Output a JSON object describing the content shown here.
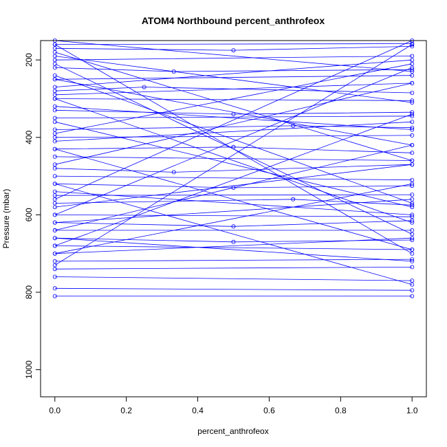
{
  "chart_data": {
    "type": "line",
    "title": "ATOM4 Northbound percent_anthrofeox",
    "xlabel": "percent_anthrofeox",
    "ylabel": "Pressure (mbar)",
    "xlim": [
      -0.04,
      1.04
    ],
    "ylim": [
      1070,
      150
    ],
    "y_reversed": true,
    "x_ticks": [
      {
        "value": 0.0,
        "label": "0.0"
      },
      {
        "value": 0.2,
        "label": "0.2"
      },
      {
        "value": 0.4,
        "label": "0.4"
      },
      {
        "value": 0.6,
        "label": "0.6"
      },
      {
        "value": 0.8,
        "label": "0.8"
      },
      {
        "value": 1.0,
        "label": "1.0"
      }
    ],
    "y_ticks": [
      {
        "value": 200,
        "label": "200"
      },
      {
        "value": 400,
        "label": "400"
      },
      {
        "value": 600,
        "label": "600"
      },
      {
        "value": 800,
        "label": "800"
      },
      {
        "value": 1000,
        "label": "1000"
      }
    ],
    "grid": false,
    "legend": "none",
    "series_color": "#0000ff",
    "marker": "open-circle",
    "series": [
      {
        "x": [
          0.0,
          1.0
        ],
        "y": [
          160,
          158
        ]
      },
      {
        "x": [
          0.0,
          1.0
        ],
        "y": [
          200,
          190
        ]
      },
      {
        "x": [
          0.0,
          1.0
        ],
        "y": [
          250,
          240
        ]
      },
      {
        "x": [
          0.0,
          1.0
        ],
        "y": [
          300,
          305
        ]
      },
      {
        "x": [
          0.0,
          1.0
        ],
        "y": [
          350,
          345
        ]
      },
      {
        "x": [
          0.0,
          1.0
        ],
        "y": [
          400,
          395
        ]
      },
      {
        "x": [
          0.0,
          1.0
        ],
        "y": [
          450,
          460
        ]
      },
      {
        "x": [
          0.0,
          1.0
        ],
        "y": [
          500,
          510
        ]
      },
      {
        "x": [
          0.0,
          1.0
        ],
        "y": [
          550,
          548
        ]
      },
      {
        "x": [
          0.0,
          1.0
        ],
        "y": [
          600,
          605
        ]
      },
      {
        "x": [
          0.0,
          1.0
        ],
        "y": [
          640,
          640
        ]
      },
      {
        "x": [
          0.0,
          1.0
        ],
        "y": [
          680,
          690
        ]
      },
      {
        "x": [
          0.0,
          1.0
        ],
        "y": [
          720,
          715
        ]
      },
      {
        "x": [
          0.0,
          1.0
        ],
        "y": [
          760,
          770
        ]
      },
      {
        "x": [
          0.0,
          1.0
        ],
        "y": [
          790,
          795
        ]
      },
      {
        "x": [
          0.0,
          1.0
        ],
        "y": [
          810,
          810
        ]
      },
      {
        "x": [
          0.0,
          0.5,
          1.0
        ],
        "y": [
          170,
          175,
          165
        ]
      },
      {
        "x": [
          0.0,
          0.333,
          1.0
        ],
        "y": [
          220,
          230,
          225
        ]
      },
      {
        "x": [
          0.0,
          0.25,
          1.0
        ],
        "y": [
          280,
          270,
          285
        ]
      },
      {
        "x": [
          0.0,
          0.5,
          1.0
        ],
        "y": [
          330,
          340,
          335
        ]
      },
      {
        "x": [
          0.0,
          0.667,
          1.0
        ],
        "y": [
          380,
          370,
          375
        ]
      },
      {
        "x": [
          0.0,
          0.5,
          1.0
        ],
        "y": [
          430,
          425,
          440
        ]
      },
      {
        "x": [
          0.0,
          0.333,
          1.0
        ],
        "y": [
          480,
          490,
          470
        ]
      },
      {
        "x": [
          0.0,
          0.5,
          1.0
        ],
        "y": [
          520,
          530,
          525
        ]
      },
      {
        "x": [
          0.0,
          0.667,
          1.0
        ],
        "y": [
          570,
          560,
          575
        ]
      },
      {
        "x": [
          0.0,
          0.5,
          1.0
        ],
        "y": [
          620,
          630,
          615
        ]
      },
      {
        "x": [
          0.0,
          0.5,
          1.0
        ],
        "y": [
          660,
          670,
          665
        ]
      },
      {
        "x": [
          0.0,
          1.0
        ],
        "y": [
          740,
          735
        ]
      },
      {
        "x": [
          0.0,
          1.0
        ],
        "y": [
          210,
          650
        ]
      },
      {
        "x": [
          0.0,
          1.0
        ],
        "y": [
          160,
          700
        ]
      },
      {
        "x": [
          0.0,
          1.0
        ],
        "y": [
          240,
          570
        ]
      },
      {
        "x": [
          0.0,
          1.0
        ],
        "y": [
          300,
          620
        ]
      },
      {
        "x": [
          0.0,
          1.0
        ],
        "y": [
          180,
          460
        ]
      },
      {
        "x": [
          0.0,
          1.0
        ],
        "y": [
          360,
          580
        ]
      },
      {
        "x": [
          0.0,
          1.0
        ],
        "y": [
          430,
          690
        ]
      },
      {
        "x": [
          0.0,
          1.0
        ],
        "y": [
          520,
          780
        ]
      },
      {
        "x": [
          0.0,
          1.0
        ],
        "y": [
          250,
          420
        ]
      },
      {
        "x": [
          0.0,
          1.0
        ],
        "y": [
          560,
          150
        ]
      },
      {
        "x": [
          0.0,
          1.0
        ],
        "y": [
          730,
          160
        ]
      },
      {
        "x": [
          0.0,
          1.0
        ],
        "y": [
          600,
          220
        ]
      },
      {
        "x": [
          0.0,
          1.0
        ],
        "y": [
          680,
          340
        ]
      },
      {
        "x": [
          0.0,
          1.0
        ],
        "y": [
          470,
          260
        ]
      },
      {
        "x": [
          0.0,
          1.0
        ],
        "y": [
          700,
          520
        ]
      },
      {
        "x": [
          0.0,
          1.0
        ],
        "y": [
          640,
          420
        ]
      },
      {
        "x": [
          0.0,
          1.0
        ],
        "y": [
          390,
          210
        ]
      },
      {
        "x": [
          0.0,
          1.0
        ],
        "y": [
          580,
          470
        ]
      },
      {
        "x": [
          0.0,
          1.0
        ],
        "y": [
          320,
          380
        ]
      },
      {
        "x": [
          0.0,
          1.0
        ],
        "y": [
          410,
          360
        ]
      },
      {
        "x": [
          0.0,
          1.0
        ],
        "y": [
          150,
          230
        ]
      },
      {
        "x": [
          0.0,
          1.0
        ],
        "y": [
          270,
          200
        ]
      },
      {
        "x": [
          0.0,
          1.0
        ],
        "y": [
          540,
          600
        ]
      },
      {
        "x": [
          0.0,
          1.0
        ],
        "y": [
          620,
          560
        ]
      },
      {
        "x": [
          0.0,
          1.0
        ],
        "y": [
          660,
          720
        ]
      },
      {
        "x": [
          0.0,
          1.0
        ],
        "y": [
          700,
          660
        ]
      },
      {
        "x": [
          0.0,
          1.0
        ],
        "y": [
          190,
          310
        ]
      },
      {
        "x": [
          0.0,
          1.0
        ],
        "y": [
          290,
          260
        ]
      }
    ]
  }
}
